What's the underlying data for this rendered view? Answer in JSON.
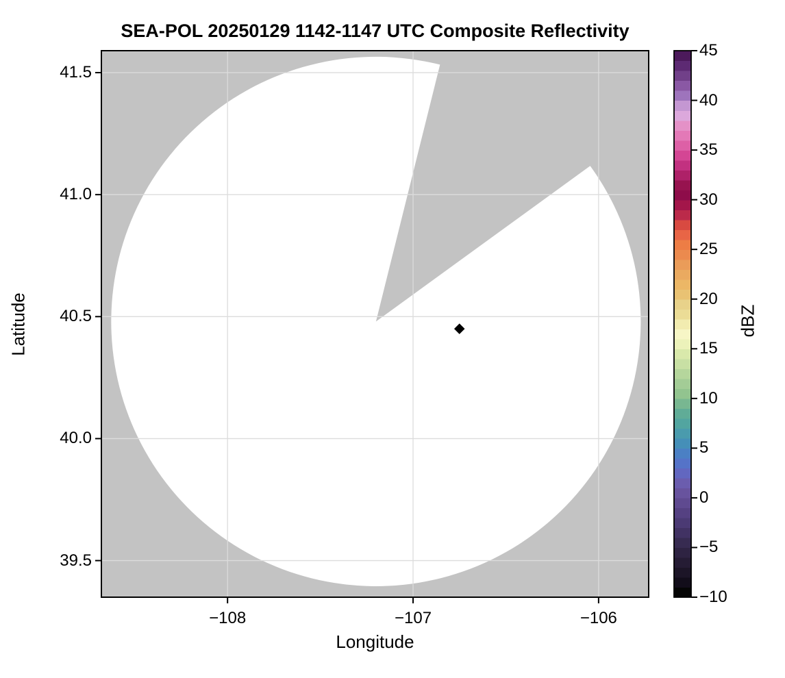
{
  "figure": {
    "title": "SEA-POL 20250129 1142-1147 UTC Composite Reflectivity"
  },
  "colors": {
    "page_background": "#ffffff",
    "masked_region": "#c3c3c3",
    "scanned_region": "#ffffff",
    "grid": "#dcdcdc",
    "frame": "#000000",
    "marker": "#000000"
  },
  "chart_data": {
    "type": "radar_coverage_map",
    "title": "SEA-POL 20250129 1142-1147 UTC Composite Reflectivity",
    "xlabel": "Longitude",
    "ylabel": "Latitude",
    "xlim": [
      -108.68,
      -105.73
    ],
    "ylim": [
      39.35,
      41.59
    ],
    "grid": true,
    "x_ticks": {
      "values": [
        -108,
        -107,
        -106
      ],
      "labels": [
        "−108",
        "−107",
        "−106"
      ]
    },
    "y_ticks": {
      "values": [
        39.5,
        40.0,
        40.5,
        41.0,
        41.5
      ],
      "labels": [
        "39.5",
        "40.0",
        "40.5",
        "41.0",
        "41.5"
      ]
    },
    "radar": {
      "center_lon": -107.2,
      "center_lat": 40.48,
      "range_lat_deg": 1.085,
      "missing_sector_azimuth_deg": [
        14,
        54
      ],
      "field_summary": "coverage area is blank/white (no reflectivity echoes rendered); outside coverage and inside missing wedge is gray mask"
    },
    "marker": {
      "lon": -106.75,
      "lat": 40.45,
      "shape": "diamond",
      "color": "#000000"
    },
    "colorbar": {
      "label": "dBZ",
      "vmin": -10,
      "vmax": 45,
      "step_dbz": 1,
      "tick_values": [
        -10,
        -5,
        0,
        5,
        10,
        15,
        20,
        25,
        30,
        35,
        40,
        45
      ],
      "tick_labels": [
        "−10",
        "−5",
        "0",
        "5",
        "10",
        "15",
        "20",
        "25",
        "30",
        "35",
        "40",
        "45"
      ],
      "color_stops": [
        [
          -10,
          "#050505"
        ],
        [
          -9,
          "#120d1a"
        ],
        [
          -8,
          "#1c1527"
        ],
        [
          -7,
          "#251c34"
        ],
        [
          -6,
          "#2e2342"
        ],
        [
          -5,
          "#372b51"
        ],
        [
          -4,
          "#413263"
        ],
        [
          -3,
          "#4b3a74"
        ],
        [
          -2,
          "#554182"
        ],
        [
          -1,
          "#5f4a90"
        ],
        [
          0,
          "#68539e"
        ],
        [
          1,
          "#6b5dae"
        ],
        [
          2,
          "#6267c0"
        ],
        [
          3,
          "#5573c8"
        ],
        [
          4,
          "#4b80c4"
        ],
        [
          5,
          "#458fb8"
        ],
        [
          6,
          "#4a9bad"
        ],
        [
          7,
          "#52a5a0"
        ],
        [
          8,
          "#60ac97"
        ],
        [
          9,
          "#78b791"
        ],
        [
          10,
          "#92c48f"
        ],
        [
          11,
          "#a3cc96"
        ],
        [
          12,
          "#b5d69c"
        ],
        [
          13,
          "#c8e0a4"
        ],
        [
          14,
          "#d9e9ab"
        ],
        [
          15,
          "#ecf2ba"
        ],
        [
          16,
          "#f7f6c6"
        ],
        [
          17,
          "#f2ecb0"
        ],
        [
          18,
          "#ebdc96"
        ],
        [
          19,
          "#e8d28a"
        ],
        [
          20,
          "#e9c273"
        ],
        [
          21,
          "#ecb766"
        ],
        [
          22,
          "#eaaa60"
        ],
        [
          23,
          "#ea9c59"
        ],
        [
          24,
          "#eb8a4e"
        ],
        [
          25,
          "#ed7d45"
        ],
        [
          26,
          "#e86546"
        ],
        [
          27,
          "#d84a41"
        ],
        [
          28,
          "#bb2a4a"
        ],
        [
          29,
          "#a3164a"
        ],
        [
          30,
          "#8e0c4a"
        ],
        [
          31,
          "#97134f"
        ],
        [
          32,
          "#ae2168"
        ],
        [
          33,
          "#c23180"
        ],
        [
          34,
          "#d44694"
        ],
        [
          35,
          "#dd60a6"
        ],
        [
          36,
          "#e379b7"
        ],
        [
          37,
          "#e491c7"
        ],
        [
          38,
          "#dca8dc"
        ],
        [
          39,
          "#c497d2"
        ],
        [
          40,
          "#9e74bc"
        ],
        [
          41,
          "#8a58a4"
        ],
        [
          42,
          "#714089"
        ],
        [
          43,
          "#5d2a73"
        ],
        [
          44,
          "#4c1a5b"
        ],
        [
          45,
          "#3a0d43"
        ]
      ]
    }
  }
}
